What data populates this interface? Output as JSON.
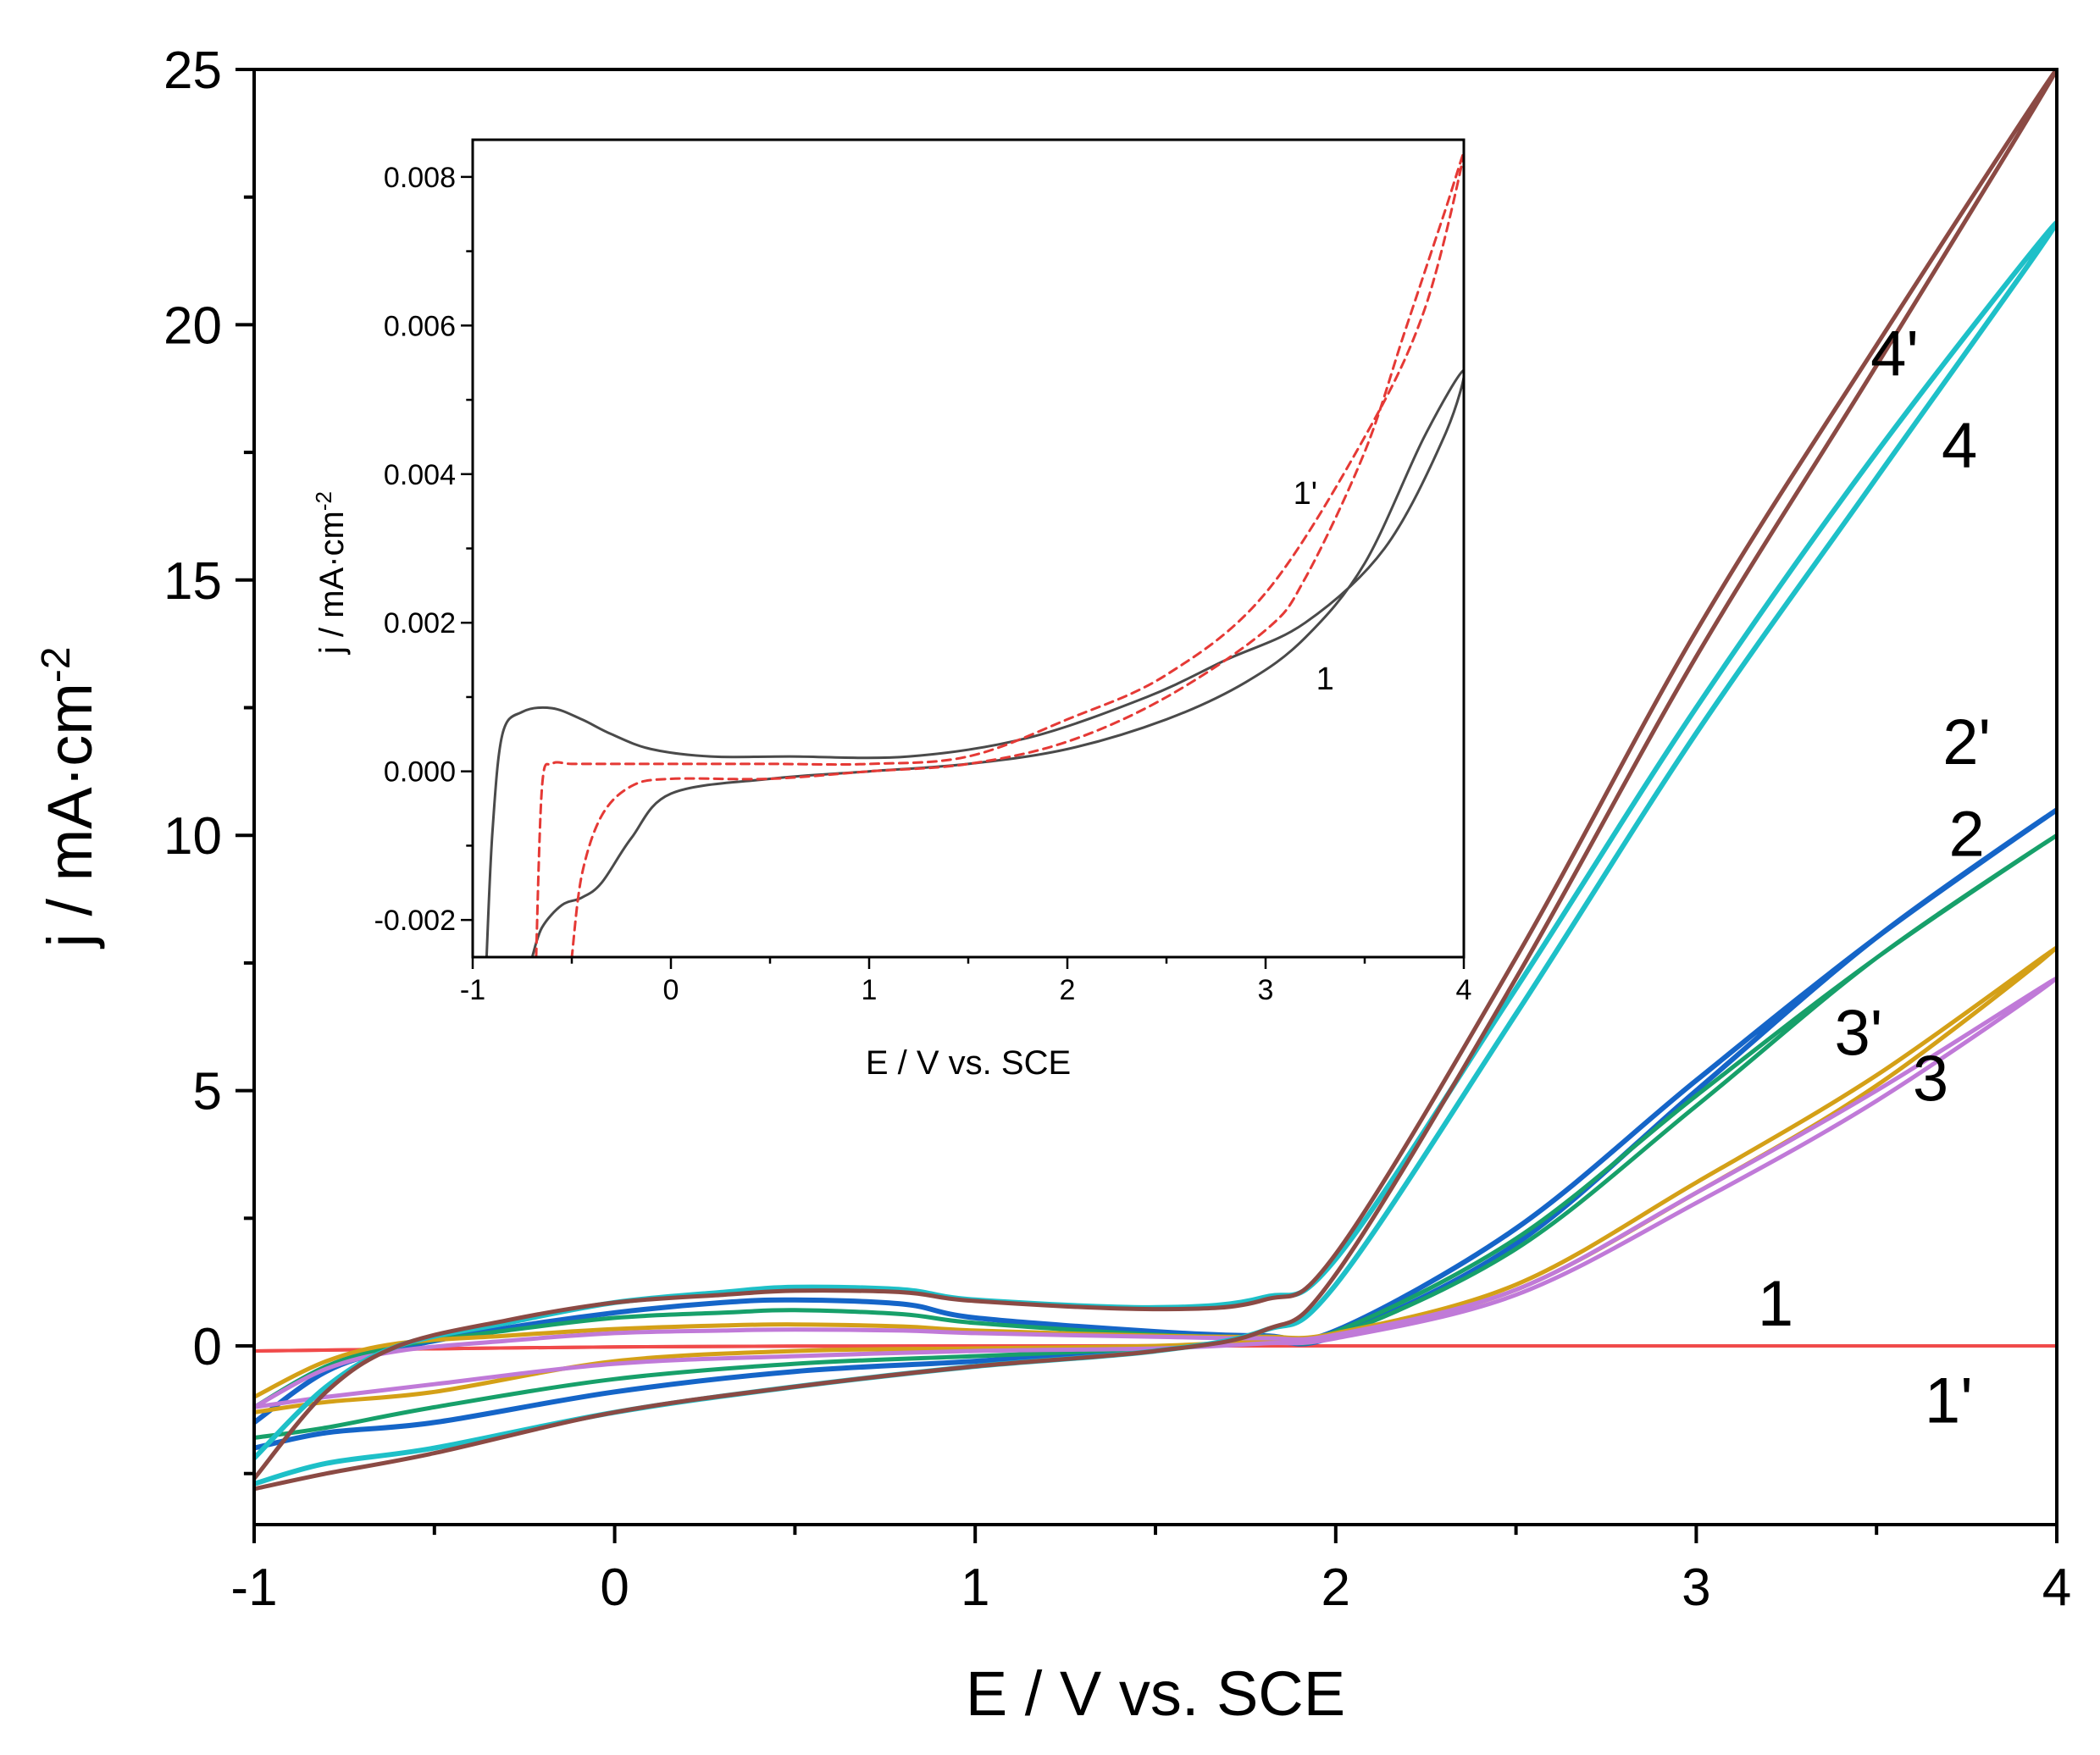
{
  "chart_data": [
    {
      "id": "main",
      "type": "line",
      "title": "",
      "xlabel": "E / V vs. SCE",
      "ylabel": "j / mA·cm",
      "ylabel_superscript": "-2",
      "xlim": [
        -1,
        4
      ],
      "ylim": [
        -3.5,
        25
      ],
      "xticks": [
        -1,
        0,
        1,
        2,
        3,
        4
      ],
      "xtick_labels": [
        "-1",
        "0",
        "1",
        "2",
        "3",
        "4"
      ],
      "yticks": [
        0,
        5,
        10,
        15,
        20,
        25
      ],
      "ytick_labels": [
        "0",
        "5",
        "10",
        "15",
        "20",
        "25"
      ],
      "grid": false,
      "legend": "none (curves labelled directly)",
      "series": [
        {
          "name": "1",
          "color": "#f04a4a",
          "width": 4,
          "x": [
            -1,
            0,
            1,
            2,
            3,
            4
          ],
          "y": [
            -0.1,
            -0.02,
            0,
            0,
            0,
            0
          ]
        },
        {
          "name": "1'",
          "color": "#f04a4a",
          "width": 4,
          "x": [
            -1,
            0,
            1,
            2,
            3,
            4
          ],
          "y": [
            -0.1,
            -0.02,
            0,
            0,
            0,
            0
          ]
        },
        {
          "name": "2'",
          "color": "#1565c8",
          "width": 6,
          "x": [
            -1,
            -0.8,
            -0.6,
            -0.3,
            0,
            0.3,
            0.5,
            0.8,
            1.0,
            1.5,
            1.8,
            2.0,
            2.5,
            3.0,
            3.5,
            4.0,
            3.5,
            3.0,
            2.5,
            2.0,
            1.8,
            1.5,
            1.0,
            0.5,
            0,
            -0.5,
            -0.8,
            -1
          ],
          "y": [
            -1.5,
            -0.5,
            -0.05,
            0.35,
            0.65,
            0.85,
            0.9,
            0.82,
            0.55,
            0.28,
            0.2,
            0.3,
            2.3,
            5.2,
            8.0,
            10.5,
            8.0,
            5.0,
            2.0,
            0.2,
            0.1,
            -0.05,
            -0.3,
            -0.5,
            -0.9,
            -1.5,
            -1.7,
            -2.0
          ]
        },
        {
          "name": "2",
          "color": "#17a06a",
          "width": 5,
          "x": [
            -1,
            -0.8,
            -0.6,
            -0.3,
            0,
            0.3,
            0.5,
            0.8,
            1.0,
            1.5,
            1.8,
            2.0,
            2.5,
            3.0,
            3.5,
            4.0,
            3.5,
            3.0,
            2.5,
            2.0,
            1.8,
            1.5,
            1.0,
            0.5,
            0,
            -0.5,
            -0.8,
            -1
          ],
          "y": [
            -1.2,
            -0.4,
            0.0,
            0.3,
            0.55,
            0.65,
            0.7,
            0.62,
            0.45,
            0.22,
            0.18,
            0.28,
            2.1,
            4.9,
            7.6,
            10.0,
            7.6,
            4.7,
            1.9,
            0.2,
            0.1,
            -0.05,
            -0.2,
            -0.35,
            -0.65,
            -1.2,
            -1.6,
            -1.8
          ]
        },
        {
          "name": "3'",
          "color": "#d4a017",
          "width": 5,
          "x": [
            -1,
            -0.8,
            -0.6,
            -0.3,
            0,
            0.3,
            0.5,
            0.8,
            1.0,
            1.5,
            1.8,
            2.0,
            2.5,
            3.0,
            3.5,
            4.0,
            3.5,
            3.0,
            2.5,
            2.0,
            1.8,
            1.5,
            1.0,
            0.5,
            0,
            -0.5,
            -0.8,
            -1
          ],
          "y": [
            -1.0,
            -0.3,
            0.05,
            0.2,
            0.33,
            0.4,
            0.42,
            0.38,
            0.3,
            0.2,
            0.18,
            0.25,
            1.2,
            3.2,
            5.3,
            7.8,
            5.1,
            3.0,
            1.1,
            0.2,
            0.1,
            0.0,
            -0.05,
            -0.1,
            -0.3,
            -0.9,
            -1.1,
            -1.3
          ]
        },
        {
          "name": "3",
          "color": "#c07ad8",
          "width": 5,
          "x": [
            -1,
            -0.8,
            -0.6,
            -0.3,
            0,
            0.3,
            0.5,
            0.8,
            1.0,
            1.5,
            1.8,
            2.0,
            2.5,
            3.0,
            3.5,
            4.0,
            3.5,
            3.0,
            2.5,
            2.0,
            1.8,
            1.5,
            1.0,
            0.5,
            0,
            -0.5,
            -0.8,
            -1
          ],
          "y": [
            -1.2,
            -0.45,
            -0.1,
            0.1,
            0.25,
            0.3,
            0.32,
            0.3,
            0.25,
            0.18,
            0.15,
            0.22,
            1.1,
            3.0,
            5.0,
            7.2,
            4.8,
            2.8,
            1.0,
            0.15,
            0.05,
            -0.05,
            -0.1,
            -0.2,
            -0.35,
            -0.75,
            -1.0,
            -1.2
          ]
        },
        {
          "name": "4",
          "color": "#1ec0c8",
          "width": 6,
          "x": [
            -1,
            -0.8,
            -0.6,
            -0.3,
            0,
            0.3,
            0.5,
            0.8,
            1.0,
            1.5,
            1.8,
            2.0,
            2.5,
            3.0,
            3.5,
            4.0,
            3.5,
            3.0,
            2.5,
            2.0,
            1.8,
            1.5,
            1.0,
            0.5,
            0,
            -0.5,
            -0.8,
            -1
          ],
          "y": [
            -2.2,
            -0.8,
            0.0,
            0.45,
            0.85,
            1.05,
            1.15,
            1.1,
            0.9,
            0.75,
            0.95,
            1.7,
            7.0,
            12.5,
            17.5,
            22.0,
            17.0,
            12.0,
            6.5,
            1.2,
            0.3,
            -0.1,
            -0.4,
            -0.8,
            -1.3,
            -2.0,
            -2.3,
            -2.7
          ]
        },
        {
          "name": "4'",
          "color": "#8b4a44",
          "width": 5,
          "x": [
            -1,
            -0.8,
            -0.6,
            -0.3,
            0,
            0.3,
            0.5,
            0.8,
            1.0,
            1.5,
            1.8,
            2.0,
            2.5,
            3.0,
            3.5,
            4.0,
            3.5,
            3.0,
            2.5,
            2.0,
            1.8,
            1.5,
            1.0,
            0.5,
            0,
            -0.5,
            -0.8,
            -1
          ],
          "y": [
            -2.6,
            -0.9,
            0.0,
            0.5,
            0.85,
            1.0,
            1.08,
            1.05,
            0.88,
            0.72,
            0.9,
            1.8,
            7.6,
            14.0,
            19.6,
            25.0,
            19.2,
            13.5,
            7.2,
            1.4,
            0.3,
            -0.1,
            -0.4,
            -0.8,
            -1.3,
            -2.1,
            -2.5,
            -2.8
          ]
        }
      ],
      "annotations": [
        {
          "text": "4'",
          "x": 3.55,
          "y": 19.0
        },
        {
          "text": "4",
          "x": 3.73,
          "y": 17.2
        },
        {
          "text": "2'",
          "x": 3.75,
          "y": 11.4
        },
        {
          "text": "2",
          "x": 3.75,
          "y": 9.6
        },
        {
          "text": "3'",
          "x": 3.45,
          "y": 5.7
        },
        {
          "text": "3",
          "x": 3.65,
          "y": 4.8
        },
        {
          "text": "1",
          "x": 3.22,
          "y": 0.4
        },
        {
          "text": "1'",
          "x": 3.7,
          "y": -1.5
        }
      ]
    },
    {
      "id": "inset",
      "type": "line",
      "title": "",
      "xlabel": "E / V vs. SCE",
      "ylabel": "j / mA·cm",
      "ylabel_superscript": "-2",
      "xlim": [
        -1,
        4
      ],
      "ylim": [
        -0.0025,
        0.0085
      ],
      "xticks": [
        -1,
        0,
        1,
        2,
        3,
        4
      ],
      "xtick_labels": [
        "-1",
        "0",
        "1",
        "2",
        "3",
        "4"
      ],
      "yticks": [
        -0.002,
        0,
        0.002,
        0.004,
        0.006,
        0.008
      ],
      "ytick_labels": [
        "-0.002",
        "0.000",
        "0.002",
        "0.004",
        "0.006",
        "0.008"
      ],
      "grid": false,
      "series": [
        {
          "name": "1",
          "color": "#4a4a4a",
          "dash": "solid",
          "x": [
            -0.93,
            -0.9,
            -0.85,
            -0.75,
            -0.6,
            -0.45,
            -0.3,
            -0.1,
            0.2,
            0.6,
            1.2,
            1.8,
            2.4,
            2.8,
            3.2,
            3.6,
            3.9,
            4.0,
            3.8,
            3.5,
            3.2,
            2.9,
            2.5,
            2.0,
            1.5,
            1.0,
            0.5,
            0.0,
            -0.2,
            -0.35,
            -0.45,
            -0.55,
            -0.65,
            -0.7
          ],
          "y": [
            -0.0025,
            -0.0008,
            0.0005,
            0.0008,
            0.00085,
            0.0007,
            0.0005,
            0.0003,
            0.0002,
            0.0002,
            0.0002,
            0.00045,
            0.001,
            0.0015,
            0.002,
            0.003,
            0.0045,
            0.0054,
            0.0045,
            0.0028,
            0.0018,
            0.0012,
            0.0007,
            0.0003,
            0.0001,
            0.0,
            -0.0001,
            -0.0003,
            -0.0009,
            -0.0015,
            -0.0017,
            -0.0018,
            -0.0021,
            -0.0025
          ]
        },
        {
          "name": "1'",
          "color": "#e53935",
          "dash": "dashed",
          "x": [
            -0.68,
            -0.65,
            -0.6,
            -0.5,
            -0.3,
            0.0,
            0.5,
            1.0,
            1.5,
            2.0,
            2.5,
            3.0,
            3.5,
            3.8,
            4.0,
            3.9,
            3.7,
            3.5,
            3.2,
            3.0,
            2.5,
            2.0,
            1.5,
            1.0,
            0.5,
            0.0,
            -0.2,
            -0.35,
            -0.45,
            -0.5
          ],
          "y": [
            -0.0025,
            -0.0002,
            0.0001,
            0.0001,
            0.0001,
            0.0001,
            0.0001,
            0.0001,
            0.0002,
            0.0007,
            0.0013,
            0.0024,
            0.0045,
            0.0062,
            0.0083,
            0.0075,
            0.0059,
            0.0043,
            0.0026,
            0.0019,
            0.001,
            0.0004,
            0.0001,
            0.0,
            -0.0001,
            -0.0001,
            -0.0002,
            -0.0006,
            -0.0014,
            -0.0025
          ]
        }
      ],
      "annotations": [
        {
          "text": "1'",
          "x": 3.2,
          "y": 0.0036
        },
        {
          "text": "1",
          "x": 3.3,
          "y": 0.0011
        }
      ]
    }
  ]
}
